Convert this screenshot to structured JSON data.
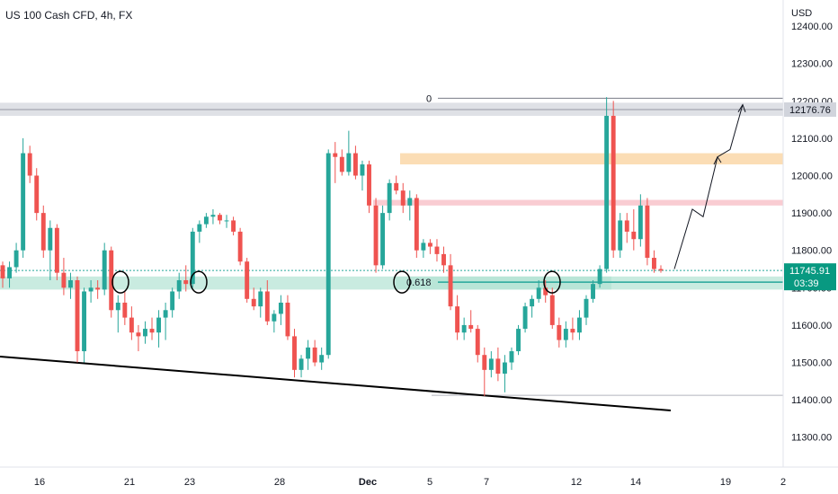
{
  "header": {
    "title": "US 100 Cash CFD, 4h, FX"
  },
  "axis": {
    "currency": "USD"
  },
  "chart_data": {
    "type": "candlestick",
    "title": "US 100 Cash CFD, 4h, FX",
    "ylabel": "USD",
    "ylim": [
      11220,
      12470
    ],
    "y_ticks": [
      "12400.00",
      "12300.00",
      "12200.00",
      "12100.00",
      "12000.00",
      "11900.00",
      "11800.00",
      "11700.00",
      "11600.00",
      "11500.00",
      "11400.00",
      "11300.00"
    ],
    "x_ticks": [
      "16",
      "21",
      "23",
      "28",
      "Dec",
      "5",
      "7",
      "12",
      "14",
      "19",
      "2"
    ],
    "last_price": "11745.91",
    "countdown": "03:39",
    "level_label": "12176.76",
    "fib_labels": {
      "top": "0",
      "mid": "0.618"
    },
    "zones": [
      {
        "name": "resistance-band",
        "from": 12160,
        "to": 12195,
        "color": "#d1d4dc"
      },
      {
        "name": "orange-zone",
        "from": 12030,
        "to": 12060,
        "color": "#f9cf95"
      },
      {
        "name": "red-zone",
        "from": 11920,
        "to": 11935,
        "color": "#f7b7bf"
      },
      {
        "name": "support-zone",
        "from": 11695,
        "to": 11730,
        "color": "#b2e3d3"
      }
    ],
    "candles": [
      [
        11760,
        11770,
        11700,
        11725
      ],
      [
        11725,
        11770,
        11700,
        11755
      ],
      [
        11755,
        11820,
        11740,
        11800
      ],
      [
        11800,
        12100,
        11780,
        12060
      ],
      [
        12060,
        12080,
        11980,
        12000
      ],
      [
        12000,
        12020,
        11880,
        11900
      ],
      [
        11900,
        11920,
        11780,
        11800
      ],
      [
        11800,
        11880,
        11720,
        11860
      ],
      [
        11860,
        11870,
        11720,
        11740
      ],
      [
        11740,
        11780,
        11680,
        11700
      ],
      [
        11700,
        11740,
        11670,
        11720
      ],
      [
        11720,
        11730,
        11500,
        11530
      ],
      [
        11530,
        11700,
        11500,
        11690
      ],
      [
        11690,
        11720,
        11660,
        11700
      ],
      [
        11700,
        11720,
        11670,
        11695
      ],
      [
        11695,
        11820,
        11680,
        11800
      ],
      [
        11800,
        11810,
        11620,
        11640
      ],
      [
        11640,
        11680,
        11580,
        11660
      ],
      [
        11660,
        11690,
        11600,
        11620
      ],
      [
        11620,
        11650,
        11560,
        11580
      ],
      [
        11580,
        11600,
        11530,
        11570
      ],
      [
        11570,
        11610,
        11550,
        11590
      ],
      [
        11590,
        11620,
        11560,
        11580
      ],
      [
        11580,
        11640,
        11540,
        11620
      ],
      [
        11620,
        11660,
        11560,
        11640
      ],
      [
        11640,
        11700,
        11620,
        11690
      ],
      [
        11690,
        11740,
        11670,
        11720
      ],
      [
        11720,
        11760,
        11690,
        11710
      ],
      [
        11710,
        11860,
        11700,
        11850
      ],
      [
        11850,
        11880,
        11820,
        11870
      ],
      [
        11870,
        11900,
        11860,
        11890
      ],
      [
        11890,
        11910,
        11870,
        11895
      ],
      [
        11895,
        11900,
        11870,
        11880
      ],
      [
        11880,
        11895,
        11860,
        11880
      ],
      [
        11880,
        11890,
        11840,
        11850
      ],
      [
        11850,
        11860,
        11760,
        11770
      ],
      [
        11770,
        11780,
        11660,
        11670
      ],
      [
        11670,
        11700,
        11640,
        11650
      ],
      [
        11650,
        11700,
        11620,
        11690
      ],
      [
        11690,
        11720,
        11600,
        11610
      ],
      [
        11610,
        11640,
        11580,
        11630
      ],
      [
        11630,
        11680,
        11600,
        11660
      ],
      [
        11660,
        11680,
        11560,
        11570
      ],
      [
        11570,
        11590,
        11460,
        11480
      ],
      [
        11480,
        11520,
        11460,
        11510
      ],
      [
        11510,
        11560,
        11480,
        11540
      ],
      [
        11540,
        11560,
        11490,
        11500
      ],
      [
        11500,
        11540,
        11480,
        11520
      ],
      [
        11520,
        12070,
        11510,
        12060
      ],
      [
        12060,
        12090,
        11980,
        12050
      ],
      [
        12050,
        12070,
        12000,
        12010
      ],
      [
        12010,
        12120,
        12000,
        12060
      ],
      [
        12060,
        12080,
        11990,
        12000
      ],
      [
        12000,
        12040,
        11960,
        12030
      ],
      [
        12030,
        12040,
        11900,
        11920
      ],
      [
        11920,
        11940,
        11740,
        11760
      ],
      [
        11760,
        11920,
        11750,
        11900
      ],
      [
        11900,
        11990,
        11880,
        11980
      ],
      [
        11980,
        12000,
        11950,
        11960
      ],
      [
        11960,
        11980,
        11900,
        11920
      ],
      [
        11920,
        11960,
        11880,
        11940
      ],
      [
        11940,
        11950,
        11780,
        11800
      ],
      [
        11800,
        11830,
        11780,
        11820
      ],
      [
        11820,
        11830,
        11790,
        11810
      ],
      [
        11810,
        11830,
        11770,
        11790
      ],
      [
        11790,
        11810,
        11740,
        11760
      ],
      [
        11760,
        11790,
        11640,
        11650
      ],
      [
        11650,
        11680,
        11560,
        11580
      ],
      [
        11580,
        11620,
        11560,
        11600
      ],
      [
        11600,
        11640,
        11580,
        11590
      ],
      [
        11590,
        11600,
        11500,
        11520
      ],
      [
        11520,
        11540,
        11410,
        11480
      ],
      [
        11480,
        11530,
        11460,
        11510
      ],
      [
        11510,
        11540,
        11450,
        11470
      ],
      [
        11470,
        11520,
        11420,
        11500
      ],
      [
        11500,
        11540,
        11480,
        11530
      ],
      [
        11530,
        11600,
        11520,
        11590
      ],
      [
        11590,
        11660,
        11580,
        11650
      ],
      [
        11650,
        11680,
        11620,
        11670
      ],
      [
        11670,
        11720,
        11660,
        11700
      ],
      [
        11700,
        11720,
        11660,
        11680
      ],
      [
        11680,
        11700,
        11590,
        11600
      ],
      [
        11600,
        11620,
        11540,
        11560
      ],
      [
        11560,
        11610,
        11540,
        11590
      ],
      [
        11590,
        11620,
        11560,
        11580
      ],
      [
        11580,
        11640,
        11560,
        11620
      ],
      [
        11620,
        11680,
        11600,
        11670
      ],
      [
        11670,
        11720,
        11660,
        11710
      ],
      [
        11710,
        11760,
        11700,
        11750
      ],
      [
        11750,
        12210,
        11740,
        12160
      ],
      [
        12160,
        12200,
        11780,
        11800
      ],
      [
        11800,
        11900,
        11780,
        11880
      ],
      [
        11880,
        11900,
        11820,
        11850
      ],
      [
        11850,
        11910,
        11800,
        11830
      ],
      [
        11830,
        11950,
        11810,
        11920
      ],
      [
        11920,
        11940,
        11760,
        11780
      ],
      [
        11780,
        11800,
        11740,
        11750
      ],
      [
        11750,
        11760,
        11740,
        11746
      ]
    ]
  }
}
